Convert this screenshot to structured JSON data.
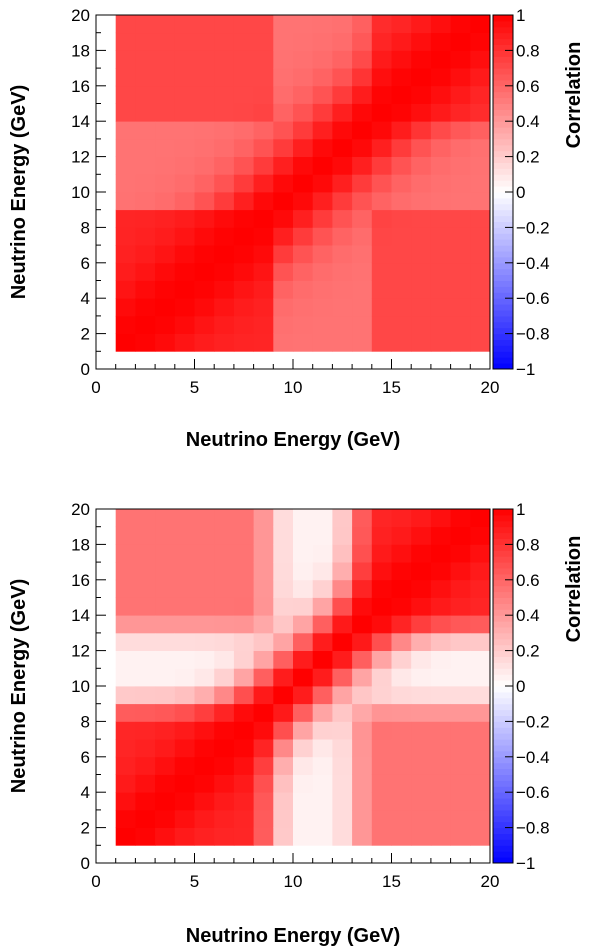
{
  "chart_data": [
    {
      "type": "heatmap",
      "title": "",
      "xlabel": "Neutrino Energy (GeV)",
      "ylabel": "Neutrino Energy (GeV)",
      "zlabel": "Correlation",
      "xlim": [
        0,
        20
      ],
      "ylim": [
        0,
        20
      ],
      "zlim": [
        -1,
        1
      ],
      "x_ticks": [
        "0",
        "5",
        "10",
        "15",
        "20"
      ],
      "y_ticks": [
        "0",
        "2",
        "4",
        "6",
        "8",
        "10",
        "12",
        "14",
        "16",
        "18",
        "20"
      ],
      "z_ticks": [
        "−1",
        "−0.8",
        "−0.6",
        "−0.4",
        "−0.2",
        "0",
        "0.2",
        "0.4",
        "0.6",
        "0.8",
        "1"
      ],
      "bins": {
        "x_min": 1,
        "x_max": 20,
        "count": 19,
        "width": 1
      },
      "colormap": {
        "negative": "#0000ff",
        "zero": "#ffffff",
        "positive": "#ff0000"
      },
      "model": {
        "diag_width": 2.5,
        "low_band": [
          1,
          8.5
        ],
        "low_val": 0.85,
        "high_band": [
          14,
          20
        ],
        "high_val": 0.8,
        "cross_low_high": 0.72,
        "mid_floor": 0.55
      }
    },
    {
      "type": "heatmap",
      "title": "",
      "xlabel": "Neutrino Energy (GeV)",
      "ylabel": "Neutrino Energy (GeV)",
      "zlabel": "Correlation",
      "xlim": [
        0,
        20
      ],
      "ylim": [
        0,
        20
      ],
      "zlim": [
        -1,
        1
      ],
      "x_ticks": [
        "0",
        "5",
        "10",
        "15",
        "20"
      ],
      "y_ticks": [
        "0",
        "2",
        "4",
        "6",
        "8",
        "10",
        "12",
        "14",
        "16",
        "18",
        "20"
      ],
      "z_ticks": [
        "−1",
        "−0.8",
        "−0.6",
        "−0.4",
        "−0.2",
        "0",
        "0.2",
        "0.4",
        "0.6",
        "0.8",
        "1"
      ],
      "bins": {
        "x_min": 1,
        "x_max": 20,
        "count": 19,
        "width": 1
      },
      "colormap": {
        "negative": "#0000ff",
        "zero": "#ffffff",
        "positive": "#ff0000"
      },
      "model": {
        "diag_width": 2.0,
        "low_band": [
          1,
          8
        ],
        "low_val": 0.85,
        "high_band": [
          14,
          20
        ],
        "high_val": 0.85,
        "cross_low_high": 0.55,
        "mid_floor": 0.05
      }
    }
  ]
}
